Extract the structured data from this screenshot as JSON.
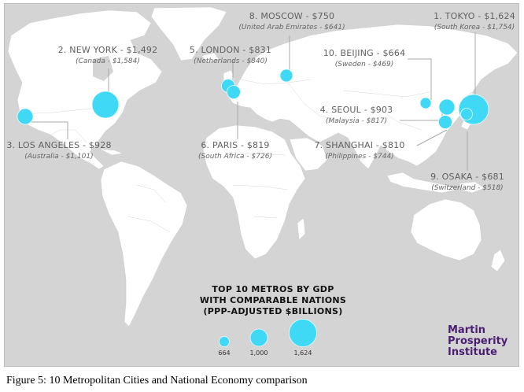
{
  "cities": [
    {
      "title": "1. TOKYO - $1,624",
      "compare": "(South Korea - $1,754)"
    },
    {
      "title": "2. NEW YORK - $1,492",
      "compare": "(Canada - $1,584)"
    },
    {
      "title": "3. LOS ANGELES - $928",
      "compare": "(Australia - $1,101)"
    },
    {
      "title": "4. SEOUL - $903",
      "compare": "(Malaysia - $817)"
    },
    {
      "title": "5. LONDON - $831",
      "compare": "(Netherlands - $840)"
    },
    {
      "title": "6. PARIS - $819",
      "compare": "(South Africa - $726)"
    },
    {
      "title": "7. SHANGHAI - $810",
      "compare": "(Philippines - $744)"
    },
    {
      "title": "8. MOSCOW - $750",
      "compare": "(United Arab Emirates - $641)"
    },
    {
      "title": "9. OSAKA - $681",
      "compare": "(Switzerland - $518)"
    },
    {
      "title": "10. BEIJING - $664",
      "compare": "(Sweden - $469)"
    }
  ],
  "legend": {
    "title_lines": [
      "TOP 10 METROS BY GDP",
      "WITH COMPARABLE NATIONS",
      "(PPP-ADJUSTED $BILLIONS)"
    ],
    "scale": [
      "664",
      "1,000",
      "1,624"
    ]
  },
  "brand": {
    "lines": [
      "Martin",
      "Prosperity",
      "Institute"
    ],
    "color": "#4a1f72"
  },
  "bubble_color": "#3fd9f6",
  "caption": "Figure 5: 10 Metropolitan Cities and National Economy comparison"
}
